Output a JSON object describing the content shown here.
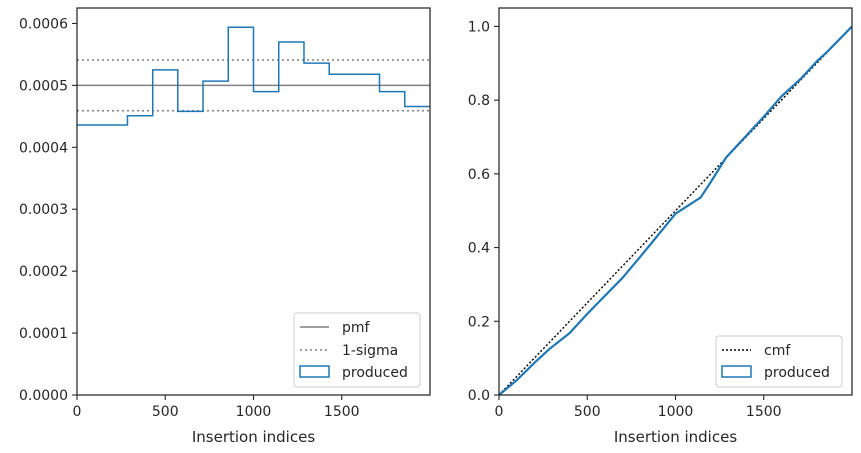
{
  "chart_data": [
    {
      "type": "line",
      "xlabel": "Insertion indices",
      "ylabel": "",
      "xlim": [
        0,
        2000
      ],
      "ylim": [
        0,
        0.000625
      ],
      "xticks": [
        0,
        500,
        1000,
        1500
      ],
      "xtick_labels": [
        "0",
        "500",
        "1000",
        "1500"
      ],
      "yticks": [
        0,
        0.0001,
        0.0002,
        0.0003,
        0.0004,
        0.0005,
        0.0006
      ],
      "ytick_labels": [
        "0.0000",
        "0.0001",
        "0.0002",
        "0.0003",
        "0.0004",
        "0.0005",
        "0.0006"
      ],
      "grid": false,
      "legend_position": "lower-right",
      "pmf": {
        "name": "pmf",
        "value": 0.0005,
        "color": "#808080"
      },
      "sigma": {
        "name": "1-sigma",
        "values": [
          0.000459,
          0.000541
        ],
        "color": "#808080"
      },
      "histogram": {
        "name": "produced",
        "color": "#1f77b4",
        "edges": [
          0,
          286,
          429,
          571,
          714,
          857,
          1000,
          1143,
          1286,
          1429,
          1714,
          1857,
          2000
        ],
        "values": [
          0.000436,
          0.000451,
          0.000525,
          0.000458,
          0.000507,
          0.000594,
          0.00049,
          0.00057,
          0.000536,
          0.000518,
          0.00049,
          0.000466
        ]
      }
    },
    {
      "type": "line",
      "xlabel": "Insertion indices",
      "ylabel": "",
      "xlim": [
        0,
        2000
      ],
      "ylim": [
        0,
        1.05
      ],
      "xticks": [
        0,
        500,
        1000,
        1500
      ],
      "xtick_labels": [
        "0",
        "500",
        "1000",
        "1500"
      ],
      "yticks": [
        0,
        0.2,
        0.4,
        0.6,
        0.8,
        1.0
      ],
      "ytick_labels": [
        "0.0",
        "0.2",
        "0.4",
        "0.6",
        "0.8",
        "1.0"
      ],
      "grid": false,
      "legend_position": "lower-right",
      "cmf": {
        "name": "cmf",
        "x": [
          0,
          2000
        ],
        "y": [
          0,
          1.0
        ],
        "color": "#000000"
      },
      "produced": {
        "name": "produced",
        "color": "#1f77b4",
        "x": [
          0,
          100,
          200,
          286,
          400,
          500,
          571,
          700,
          800,
          857,
          1000,
          1143,
          1200,
          1286,
          1429,
          1500,
          1600,
          1714,
          1800,
          1857,
          2000
        ],
        "y": [
          0,
          0.04,
          0.087,
          0.125,
          0.168,
          0.22,
          0.255,
          0.318,
          0.375,
          0.408,
          0.492,
          0.536,
          0.578,
          0.644,
          0.718,
          0.755,
          0.81,
          0.86,
          0.905,
          0.93,
          1.0
        ]
      }
    }
  ]
}
